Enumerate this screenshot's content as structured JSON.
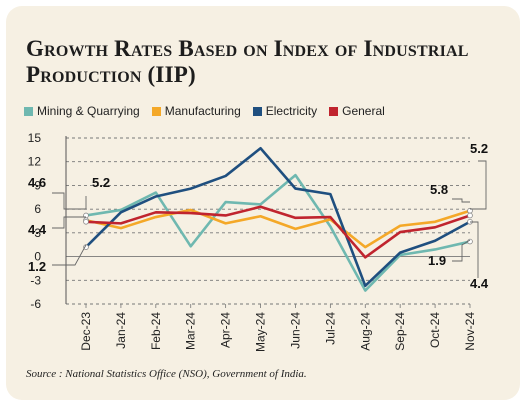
{
  "title": "Growth Rates Based on Index of Industrial Production (IIP)",
  "source": "Source : National Statistics Office (NSO), Government of India.",
  "legend": [
    {
      "name": "Mining & Quarrying",
      "color": "#6fb8b0"
    },
    {
      "name": "Manufacturing",
      "color": "#f4a828"
    },
    {
      "name": "Electricity",
      "color": "#1f4f7f"
    },
    {
      "name": "General",
      "color": "#c0242e"
    }
  ],
  "chart_data": {
    "type": "line",
    "categories": [
      "Dec-23",
      "Jan-24",
      "Feb-24",
      "Mar-24",
      "Apr-24",
      "May-24",
      "Jun-24",
      "Jul-24",
      "Aug-24",
      "Sep-24",
      "Oct-24",
      "Nov-24"
    ],
    "ylim": [
      -6,
      15
    ],
    "yticks": [
      "15",
      "12",
      "9",
      "6",
      "3",
      "0",
      "-3",
      "-6"
    ],
    "grid": true,
    "legend_position": "top",
    "series": [
      {
        "name": "Mining & Quarrying",
        "color": "#6fb8b0",
        "values": [
          5.2,
          5.9,
          8.1,
          1.3,
          6.9,
          6.6,
          10.3,
          3.8,
          -4.3,
          0.2,
          0.9,
          1.9
        ]
      },
      {
        "name": "Manufacturing",
        "color": "#f4a828",
        "values": [
          4.6,
          3.6,
          5.0,
          5.9,
          4.2,
          5.1,
          3.5,
          4.7,
          1.2,
          3.9,
          4.4,
          5.8
        ]
      },
      {
        "name": "Electricity",
        "color": "#1f4f7f",
        "values": [
          1.2,
          5.6,
          7.6,
          8.6,
          10.2,
          13.7,
          8.6,
          7.9,
          -3.7,
          0.5,
          2.0,
          4.4
        ]
      },
      {
        "name": "General",
        "color": "#c0242e",
        "values": [
          4.4,
          4.2,
          5.6,
          5.5,
          5.2,
          6.3,
          4.9,
          5.0,
          -0.1,
          3.1,
          3.7,
          5.2
        ]
      }
    ],
    "annotations": [
      {
        "text": "4.6",
        "series": "Manufacturing",
        "index": 0
      },
      {
        "text": "5.2",
        "series": "Mining & Quarrying",
        "index": 0
      },
      {
        "text": "4.4",
        "series": "General",
        "index": 0
      },
      {
        "text": "1.2",
        "series": "Electricity",
        "index": 0
      },
      {
        "text": "5.2",
        "series": "General",
        "index": 11
      },
      {
        "text": "5.8",
        "series": "Manufacturing",
        "index": 11
      },
      {
        "text": "1.9",
        "series": "Mining & Quarrying",
        "index": 11
      },
      {
        "text": "4.4",
        "series": "Electricity",
        "index": 11
      }
    ]
  }
}
